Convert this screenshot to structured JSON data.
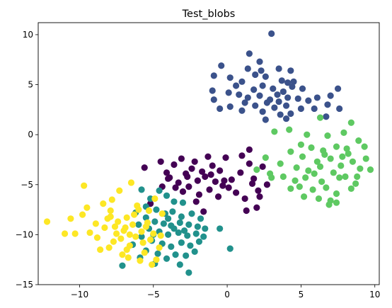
{
  "chart_data": {
    "type": "scatter",
    "title": "Test_blobs",
    "xlabel": "",
    "ylabel": "",
    "xlim": [
      -12.8,
      10.3
    ],
    "ylim": [
      -15,
      11.2
    ],
    "xticks": [
      -10,
      -5,
      0,
      5,
      10
    ],
    "yticks": [
      -15,
      -10,
      -5,
      0,
      5,
      10
    ],
    "grid": false,
    "legend": "none",
    "series": [
      {
        "color": "#440154",
        "points": [
          [
            -5.6,
            -3.3
          ],
          [
            -4.5,
            -2.7
          ],
          [
            -4.1,
            -3.8
          ],
          [
            -3.9,
            -4.3
          ],
          [
            -3.6,
            -3.0
          ],
          [
            -3.3,
            -4.8
          ],
          [
            -3.1,
            -2.4
          ],
          [
            -2.8,
            -3.9
          ],
          [
            -2.6,
            -5.2
          ],
          [
            -2.4,
            -3.4
          ],
          [
            -2.2,
            -2.7
          ],
          [
            -2.0,
            -4.6
          ],
          [
            -1.9,
            -6.0
          ],
          [
            -1.7,
            -3.7
          ],
          [
            -1.5,
            -4.2
          ],
          [
            -1.3,
            -2.2
          ],
          [
            -1.2,
            -5.5
          ],
          [
            -1.0,
            -3.1
          ],
          [
            -0.8,
            -4.7
          ],
          [
            -0.6,
            -6.2
          ],
          [
            -0.5,
            -3.6
          ],
          [
            -0.3,
            -5.1
          ],
          [
            -0.1,
            -2.3
          ],
          [
            0.3,
            -4.5
          ],
          [
            0.6,
            -5.8
          ],
          [
            0.9,
            -3.8
          ],
          [
            1.2,
            -6.4
          ],
          [
            1.5,
            -2.9
          ],
          [
            1.8,
            -4.4
          ],
          [
            2.1,
            -5.6
          ],
          [
            2.4,
            -3.2
          ],
          [
            2.7,
            -5.0
          ],
          [
            2.0,
            -7.3
          ],
          [
            1.3,
            -7.6
          ],
          [
            1.0,
            -2.1
          ],
          [
            1.5,
            -1.5
          ],
          [
            -3.0,
            -5.7
          ],
          [
            -2.1,
            -6.7
          ],
          [
            -1.6,
            -7.7
          ],
          [
            -2.7,
            -4.2
          ],
          [
            -3.5,
            -5.3
          ],
          [
            -4.4,
            -5.2
          ],
          [
            -4.0,
            -4.4
          ],
          [
            -1.1,
            -4.0
          ],
          [
            -0.2,
            -4.6
          ],
          [
            0.1,
            -5.3
          ],
          [
            1.7,
            -4.9
          ],
          [
            2.2,
            -6.2
          ],
          [
            -5.2,
            -6.9
          ]
        ]
      },
      {
        "color": "#3b528b",
        "points": [
          [
            3.0,
            10.1
          ],
          [
            1.5,
            8.1
          ],
          [
            2.2,
            7.3
          ],
          [
            -0.4,
            6.9
          ],
          [
            1.4,
            6.6
          ],
          [
            2.3,
            6.4
          ],
          [
            3.5,
            6.6
          ],
          [
            4.3,
            6.4
          ],
          [
            1.9,
            6.0
          ],
          [
            2.6,
            5.8
          ],
          [
            -0.9,
            5.9
          ],
          [
            0.2,
            5.7
          ],
          [
            1.0,
            5.3
          ],
          [
            3.7,
            5.4
          ],
          [
            4.1,
            5.2
          ],
          [
            4.5,
            5.3
          ],
          [
            5.1,
            4.6
          ],
          [
            0.6,
            4.9
          ],
          [
            1.8,
            4.5
          ],
          [
            2.4,
            4.9
          ],
          [
            3.1,
            4.6
          ],
          [
            3.8,
            4.3
          ],
          [
            4.4,
            4.8
          ],
          [
            -1.0,
            4.4
          ],
          [
            0.1,
            4.2
          ],
          [
            0.8,
            4.0
          ],
          [
            1.4,
            3.7
          ],
          [
            2.2,
            3.9
          ],
          [
            2.9,
            3.5
          ],
          [
            3.4,
            4.0
          ],
          [
            4.1,
            3.7
          ],
          [
            4.8,
            3.6
          ],
          [
            5.5,
            3.4
          ],
          [
            6.1,
            3.7
          ],
          [
            7.0,
            3.9
          ],
          [
            7.5,
            4.6
          ],
          [
            5.0,
            2.6
          ],
          [
            4.0,
            2.9
          ],
          [
            3.2,
            2.7
          ],
          [
            2.4,
            2.3
          ],
          [
            1.9,
            2.9
          ],
          [
            1.0,
            2.4
          ],
          [
            0.2,
            2.8
          ],
          [
            -0.5,
            2.6
          ],
          [
            -0.9,
            3.5
          ],
          [
            3.6,
            2.0
          ],
          [
            4.3,
            2.1
          ],
          [
            6.7,
            1.8
          ],
          [
            7.6,
            2.6
          ],
          [
            2.6,
            1.5
          ],
          [
            4.0,
            1.6
          ],
          [
            5.9,
            2.6
          ],
          [
            6.8,
            3.0
          ],
          [
            1.2,
            3.2
          ],
          [
            2.7,
            3.2
          ],
          [
            3.5,
            3.3
          ]
        ]
      },
      {
        "color": "#21918c",
        "points": [
          [
            -5.8,
            -5.5
          ],
          [
            -5.2,
            -6.4
          ],
          [
            -4.6,
            -5.6
          ],
          [
            -4.1,
            -6.1
          ],
          [
            -3.6,
            -6.7
          ],
          [
            -3.0,
            -6.8
          ],
          [
            -5.5,
            -7.2
          ],
          [
            -4.8,
            -7.5
          ],
          [
            -4.2,
            -7.9
          ],
          [
            -3.7,
            -7.7
          ],
          [
            -3.1,
            -8.2
          ],
          [
            -2.4,
            -7.9
          ],
          [
            -1.8,
            -8.4
          ],
          [
            -6.2,
            -7.8
          ],
          [
            -5.5,
            -8.3
          ],
          [
            -4.9,
            -8.7
          ],
          [
            -4.3,
            -8.9
          ],
          [
            -3.8,
            -9.1
          ],
          [
            -3.2,
            -8.8
          ],
          [
            -2.6,
            -9.0
          ],
          [
            -2.0,
            -9.2
          ],
          [
            -1.5,
            -9.4
          ],
          [
            -6.0,
            -9.0
          ],
          [
            -5.3,
            -9.4
          ],
          [
            -4.6,
            -9.7
          ],
          [
            -4.0,
            -10.0
          ],
          [
            -3.3,
            -9.8
          ],
          [
            -2.7,
            -10.1
          ],
          [
            -2.1,
            -9.9
          ],
          [
            -1.6,
            -10.2
          ],
          [
            -0.5,
            -9.4
          ],
          [
            -5.8,
            -10.2
          ],
          [
            -5.1,
            -10.6
          ],
          [
            -4.4,
            -10.9
          ],
          [
            -3.8,
            -11.2
          ],
          [
            -3.1,
            -10.8
          ],
          [
            -2.5,
            -11.1
          ],
          [
            -1.9,
            -10.7
          ],
          [
            -5.5,
            -11.6
          ],
          [
            -4.7,
            -11.9
          ],
          [
            -4.1,
            -12.4
          ],
          [
            -3.5,
            -12.0
          ],
          [
            -2.8,
            -12.1
          ],
          [
            -2.2,
            -11.7
          ],
          [
            -5.9,
            -12.3
          ],
          [
            -4.9,
            -12.9
          ],
          [
            -3.2,
            -13.0
          ],
          [
            -2.6,
            -13.8
          ],
          [
            -7.1,
            -13.1
          ],
          [
            0.2,
            -11.4
          ],
          [
            -6.4,
            -11.0
          ],
          [
            -3.6,
            -9.4
          ],
          [
            -4.0,
            -8.4
          ],
          [
            -2.9,
            -9.6
          ],
          [
            -5.0,
            -10.0
          ]
        ]
      },
      {
        "color": "#5ec962",
        "points": [
          [
            6.3,
            1.7
          ],
          [
            8.4,
            1.2
          ],
          [
            3.2,
            0.3
          ],
          [
            4.2,
            0.5
          ],
          [
            5.4,
            0.0
          ],
          [
            6.8,
            -0.1
          ],
          [
            7.9,
            0.2
          ],
          [
            8.9,
            -0.6
          ],
          [
            9.3,
            -1.2
          ],
          [
            5.0,
            -1.0
          ],
          [
            5.7,
            -1.3
          ],
          [
            6.5,
            -1.6
          ],
          [
            7.4,
            -1.2
          ],
          [
            8.2,
            -1.9
          ],
          [
            4.3,
            -1.7
          ],
          [
            5.1,
            -2.2
          ],
          [
            6.1,
            -2.7
          ],
          [
            7.0,
            -2.4
          ],
          [
            7.7,
            -3.1
          ],
          [
            8.5,
            -2.7
          ],
          [
            9.4,
            -2.4
          ],
          [
            2.6,
            -2.3
          ],
          [
            3.6,
            -2.9
          ],
          [
            4.7,
            -3.3
          ],
          [
            5.5,
            -3.6
          ],
          [
            6.3,
            -3.2
          ],
          [
            7.2,
            -3.8
          ],
          [
            8.0,
            -4.2
          ],
          [
            9.0,
            -3.4
          ],
          [
            9.7,
            -3.5
          ],
          [
            2.0,
            -3.5
          ],
          [
            2.9,
            -3.9
          ],
          [
            3.8,
            -4.2
          ],
          [
            4.6,
            -4.6
          ],
          [
            5.3,
            -4.3
          ],
          [
            6.4,
            -4.7
          ],
          [
            7.6,
            -4.3
          ],
          [
            8.8,
            -4.2
          ],
          [
            4.9,
            -5.2
          ],
          [
            5.8,
            -5.5
          ],
          [
            6.7,
            -5.3
          ],
          [
            7.4,
            -5.9
          ],
          [
            8.4,
            -5.4
          ],
          [
            5.2,
            -6.2
          ],
          [
            6.2,
            -6.4
          ],
          [
            7.0,
            -6.6
          ],
          [
            4.3,
            -5.4
          ],
          [
            6.9,
            -7.0
          ],
          [
            7.4,
            -6.8
          ],
          [
            8.7,
            -4.9
          ],
          [
            3.0,
            -4.3
          ],
          [
            5.9,
            -3.9
          ],
          [
            7.8,
            -2.2
          ],
          [
            6.6,
            -2.0
          ],
          [
            8.1,
            -1.4
          ]
        ]
      },
      {
        "color": "#fde725",
        "points": [
          [
            -12.2,
            -8.7
          ],
          [
            -11.0,
            -9.9
          ],
          [
            -10.6,
            -8.4
          ],
          [
            -9.8,
            -8.0
          ],
          [
            -9.5,
            -7.3
          ],
          [
            -9.7,
            -5.1
          ],
          [
            -10.3,
            -9.9
          ],
          [
            -9.3,
            -9.8
          ],
          [
            -8.8,
            -10.3
          ],
          [
            -8.6,
            -11.5
          ],
          [
            -8.3,
            -9.3
          ],
          [
            -8.1,
            -8.4
          ],
          [
            -7.9,
            -7.6
          ],
          [
            -7.6,
            -9.2
          ],
          [
            -7.4,
            -8.7
          ],
          [
            -7.2,
            -10.4
          ],
          [
            -7.0,
            -9.6
          ],
          [
            -6.8,
            -8.3
          ],
          [
            -6.6,
            -11.1
          ],
          [
            -6.4,
            -9.0
          ],
          [
            -6.2,
            -10.2
          ],
          [
            -6.0,
            -7.5
          ],
          [
            -5.8,
            -9.7
          ],
          [
            -5.6,
            -11.8
          ],
          [
            -5.4,
            -8.8
          ],
          [
            -5.2,
            -10.5
          ],
          [
            -5.0,
            -9.9
          ],
          [
            -4.8,
            -12.5
          ],
          [
            -4.6,
            -11.3
          ],
          [
            -7.8,
            -6.5
          ],
          [
            -7.3,
            -5.6
          ],
          [
            -6.5,
            -4.8
          ],
          [
            -6.1,
            -7.1
          ],
          [
            -5.3,
            -7.6
          ],
          [
            -4.9,
            -6.4
          ],
          [
            -4.4,
            -7.9
          ],
          [
            -8.4,
            -6.9
          ],
          [
            -8.0,
            -11.3
          ],
          [
            -7.1,
            -12.0
          ],
          [
            -6.7,
            -12.3
          ],
          [
            -5.9,
            -12.6
          ],
          [
            -5.1,
            -13.0
          ],
          [
            -7.5,
            -9.9
          ],
          [
            -6.9,
            -9.3
          ],
          [
            -6.3,
            -8.0
          ],
          [
            -5.7,
            -10.8
          ],
          [
            -8.9,
            -8.9
          ],
          [
            -7.7,
            -10.7
          ],
          [
            -6.6,
            -10.0
          ],
          [
            -5.5,
            -9.2
          ],
          [
            -4.5,
            -10.1
          ],
          [
            -6.8,
            -11.5
          ],
          [
            -7.9,
            -8.2
          ]
        ]
      }
    ]
  }
}
